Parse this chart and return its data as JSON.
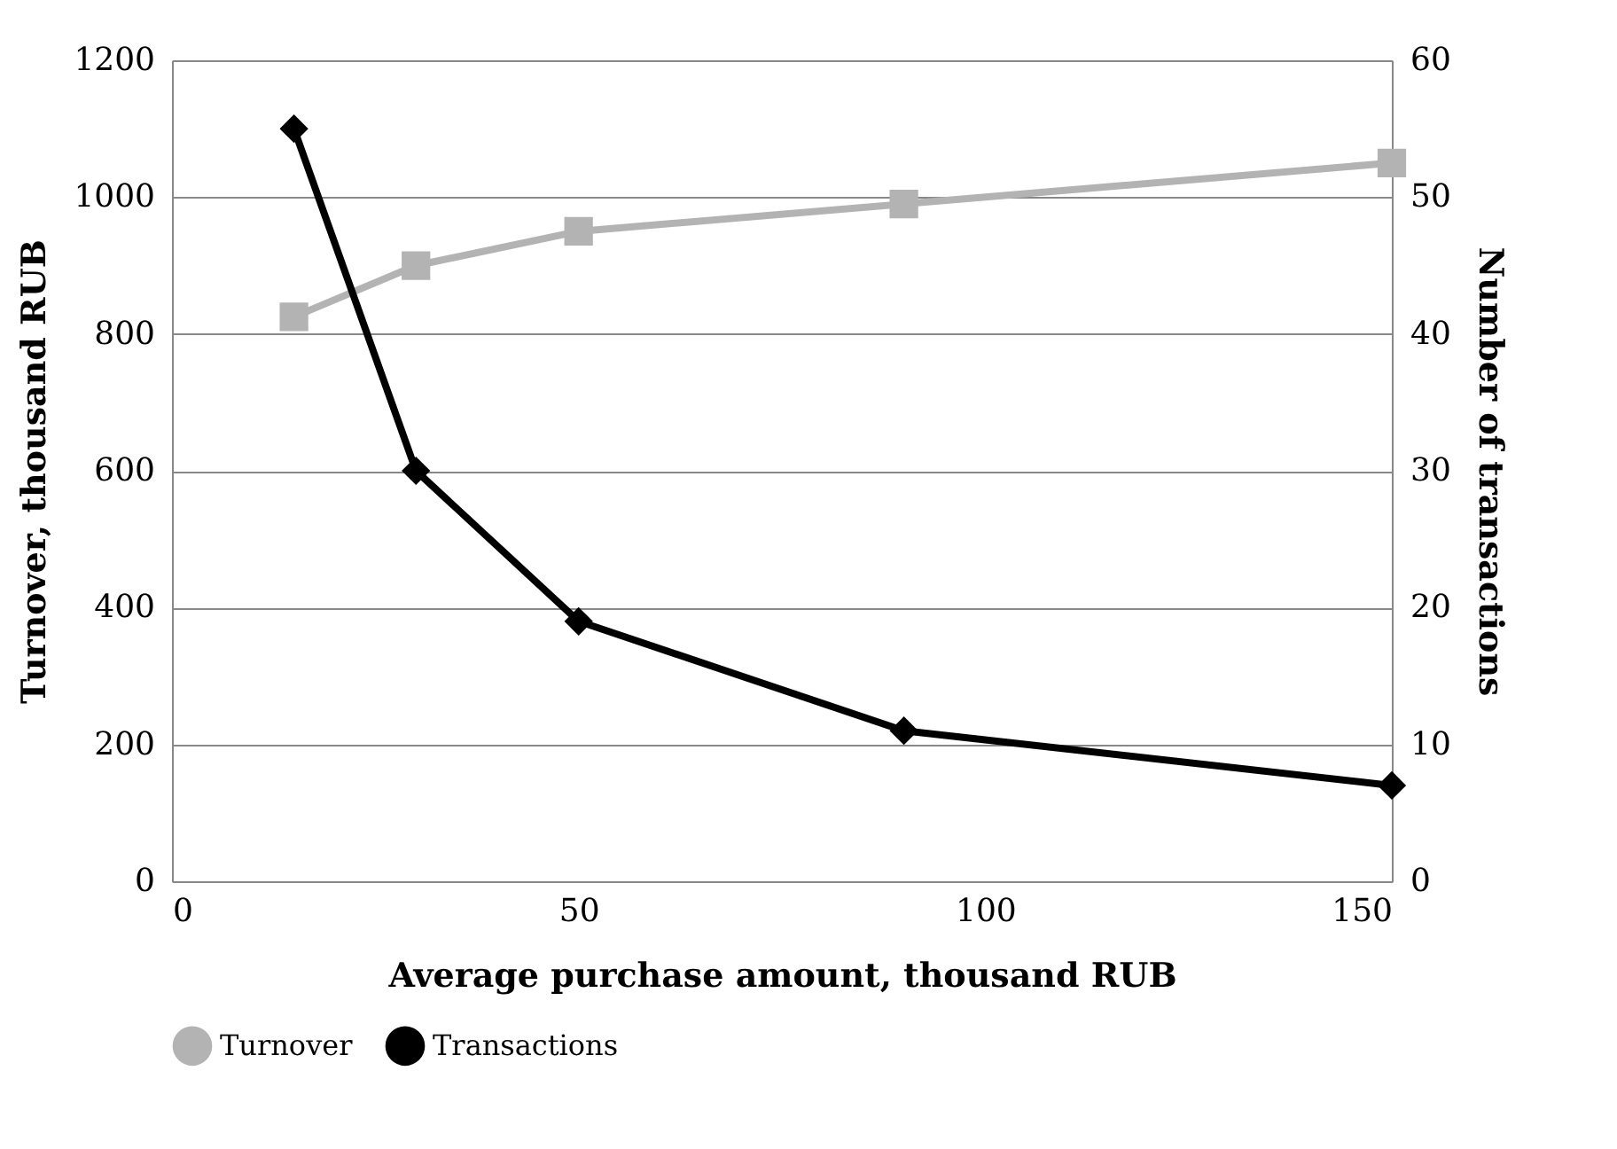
{
  "chart_data": {
    "type": "line",
    "xlabel": "Average purchase amount, thousand RUB",
    "ylabel": "Turnover, thousand RUB",
    "y2label": "Number of transactions",
    "x": [
      15,
      30,
      50,
      90,
      150
    ],
    "series": [
      {
        "name": "Turnover",
        "color": "#b3b3b3",
        "marker": "square",
        "values": [
          825,
          900,
          950,
          990,
          1050
        ]
      },
      {
        "name": "Transactions",
        "color": "#000000",
        "marker": "diamond",
        "axis": "y2",
        "values": [
          55,
          30,
          19,
          11,
          7
        ]
      }
    ],
    "xlim": [
      0,
      150
    ],
    "xticks": [
      0,
      50,
      100,
      150
    ],
    "ylim": [
      0,
      1200
    ],
    "yticks": [
      0,
      200,
      400,
      600,
      800,
      1000,
      1200
    ],
    "y2lim": [
      0,
      60
    ],
    "y2ticks": [
      0,
      10,
      20,
      30,
      40,
      50,
      60
    ],
    "grid": "y",
    "legend": "bottom",
    "line_style": "solid"
  }
}
